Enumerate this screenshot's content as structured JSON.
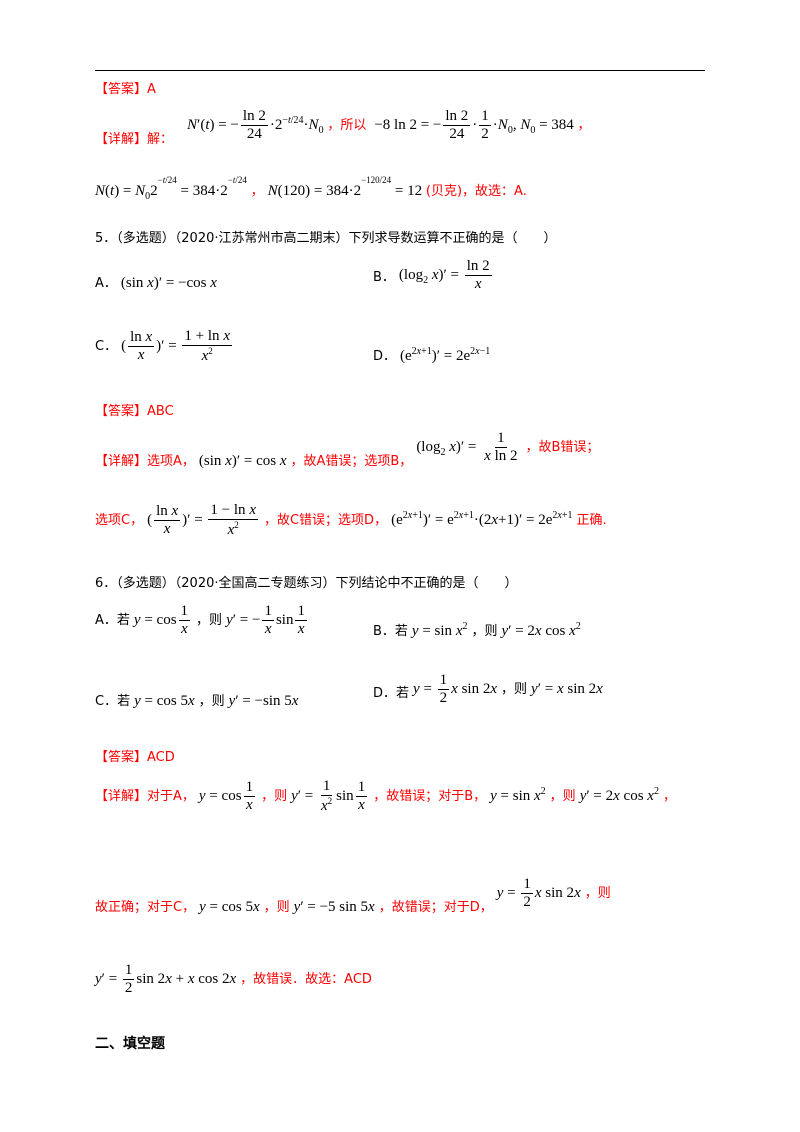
{
  "labels": {
    "answer": "【答案】",
    "detail": "【详解】"
  },
  "q4": {
    "answer": "A",
    "detail_prefix": "解：",
    "so_text": "，所以",
    "comma": "，",
    "n120_tail": "(贝克)，故选：A."
  },
  "q5": {
    "stem": "5．（多选题）（2020·江苏常州市高二期末）下列求导数运算不正确的是（　　）",
    "opt_a_label": "A．",
    "opt_b_label": "B．",
    "opt_c_label": "C．",
    "opt_d_label": "D．",
    "answer": "ABC",
    "d1": "选项A，",
    "d2": "，故A错误；选项B，",
    "d3": "，故B错误；",
    "d4": "选项C，",
    "d5": "，故C错误；选项D，",
    "d6": "正确."
  },
  "q6": {
    "stem": "6．（多选题）（2020·全国高二专题练习）下列结论中不正确的是（　　）",
    "opt_a_label": "A．若",
    "opt_b_label": "B．若",
    "opt_c_label": "C．若",
    "opt_d_label": "D．若",
    "then": "，则",
    "answer": "ACD",
    "d1": "对于A，",
    "d2": "，则",
    "d3": "，故错误；对于B，",
    "d4": "，则",
    "d5": "，",
    "d6": "故正确；对于C，",
    "d7": "，则",
    "d8": "，故错误；对于D，",
    "d9": "，则",
    "d10": "，故错误．故选：ACD"
  },
  "section2": {
    "title": "二、填空题"
  }
}
